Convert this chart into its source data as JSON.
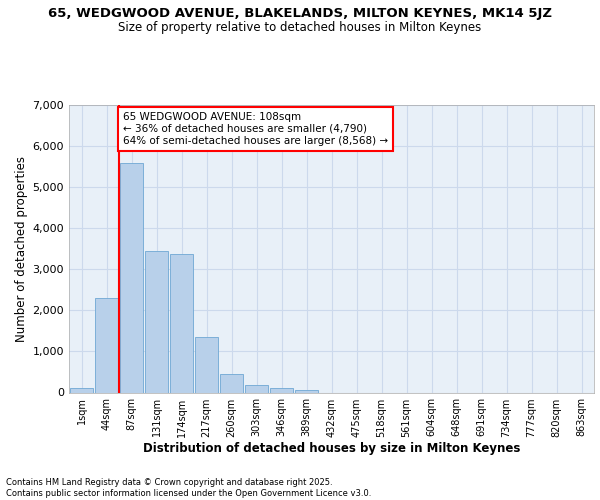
{
  "title_line1": "65, WEDGWOOD AVENUE, BLAKELANDS, MILTON KEYNES, MK14 5JZ",
  "title_line2": "Size of property relative to detached houses in Milton Keynes",
  "xlabel": "Distribution of detached houses by size in Milton Keynes",
  "ylabel": "Number of detached properties",
  "categories": [
    "1sqm",
    "44sqm",
    "87sqm",
    "131sqm",
    "174sqm",
    "217sqm",
    "260sqm",
    "303sqm",
    "346sqm",
    "389sqm",
    "432sqm",
    "475sqm",
    "518sqm",
    "561sqm",
    "604sqm",
    "648sqm",
    "691sqm",
    "734sqm",
    "777sqm",
    "820sqm",
    "863sqm"
  ],
  "values": [
    100,
    2300,
    5600,
    3450,
    3380,
    1350,
    460,
    190,
    100,
    70,
    0,
    0,
    0,
    0,
    0,
    0,
    0,
    0,
    0,
    0,
    0
  ],
  "bar_color": "#b8d0ea",
  "bar_edge_color": "#6fa8d4",
  "vline_x": 1.5,
  "vline_color": "red",
  "annotation_title": "65 WEDGWOOD AVENUE: 108sqm",
  "annotation_line2": "← 36% of detached houses are smaller (4,790)",
  "annotation_line3": "64% of semi-detached houses are larger (8,568) →",
  "annotation_box_color": "red",
  "annotation_bg": "white",
  "ylim": [
    0,
    7000
  ],
  "yticks": [
    0,
    1000,
    2000,
    3000,
    4000,
    5000,
    6000,
    7000
  ],
  "grid_color": "#ccd9ec",
  "bg_color": "#e8f0f8",
  "footer_line1": "Contains HM Land Registry data © Crown copyright and database right 2025.",
  "footer_line2": "Contains public sector information licensed under the Open Government Licence v3.0."
}
